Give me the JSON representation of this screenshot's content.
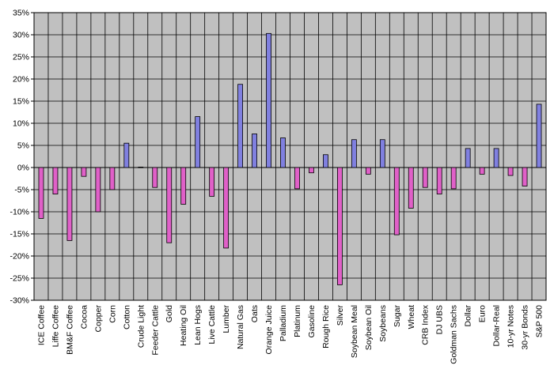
{
  "chart_data": {
    "type": "bar",
    "title": "",
    "xlabel": "",
    "ylabel": "",
    "ylim": [
      -30,
      35
    ],
    "ytick_step": 5,
    "y_format": "percent",
    "grid": true,
    "legend": "none",
    "colors": {
      "positive": "#8080e0",
      "negative": "#e060c8",
      "plot_background": "#c0c0c0",
      "gridline": "#000000"
    },
    "categories": [
      "ICE Coffee",
      "Liffe Coffee",
      "BM&F Coffee",
      "Cocoa",
      "Copper",
      "Corn",
      "Cotton",
      "Crude Light",
      "Feeder Cattle",
      "Gold",
      "Heating Oil",
      "Lean Hogs",
      "Live Cattle",
      "Lumber",
      "Natural Gas",
      "Oats",
      "Orange Juice",
      "Palladium",
      "Platinum",
      "Gasoline",
      "Rough Rice",
      "Silver",
      "Soybean Meal",
      "Soybean Oil",
      "Soybeans",
      "Sugar",
      "Wheat",
      "CRB Index",
      "DJ UBS",
      "Goldman Sachs",
      "Dollar",
      "Euro",
      "Dollar-Real",
      "10-yr Notes",
      "30-yr Bonds",
      "S&P 500"
    ],
    "values": [
      -11.5,
      -6,
      -16.5,
      -2,
      -10,
      -5,
      5.5,
      0.1,
      -4.5,
      -17,
      -8.3,
      11.5,
      -6.5,
      -18.2,
      18.8,
      7.6,
      30.3,
      6.7,
      -4.8,
      -1.2,
      2.9,
      -26.5,
      6.3,
      -1.5,
      6.3,
      -15.2,
      -9.2,
      -4.5,
      -6,
      -4.8,
      4.3,
      -1.5,
      4.3,
      -1.8,
      -4.2,
      14.3
    ]
  }
}
